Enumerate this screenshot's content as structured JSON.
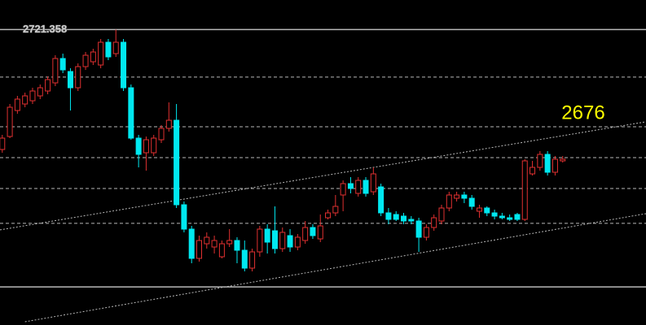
{
  "chart_data": {
    "type": "candlestick",
    "xlim": [
      -0.3,
      85
    ],
    "ylim": [
      2585,
      2735
    ],
    "yticks": [
      2721.358
    ],
    "grid_levels": [
      2699.4,
      2676.5,
      2662.25,
      2648,
      2631.9
    ],
    "solid_levels": [
      2602.6
    ],
    "up_color": "#e03030",
    "down_color": "#00e8f0",
    "grid_color": "#b8b8b8",
    "annotation": "2676",
    "annotation_color": "#ffff00",
    "trendlines": [
      {
        "x": [
          -0.3,
          85
        ],
        "y": [
          2628.9,
          2678.8
        ]
      },
      {
        "x": [
          3,
          85
        ],
        "y": [
          2586.5,
          2636.4
        ]
      }
    ],
    "open": [
      2666,
      2672,
      2684,
      2687,
      2688.5,
      2690.75,
      2693,
      2696.75,
      2708,
      2702,
      2694.5,
      2704.25,
      2706.5,
      2705,
      2715.5,
      2710.25,
      2715.5,
      2694.5,
      2671.25,
      2664.5,
      2664.5,
      2670.5,
      2675.75,
      2679.5,
      2640.5,
      2629.25,
      2615.75,
      2622.5,
      2621,
      2616.5,
      2622.5,
      2624,
      2619.5,
      2611.25,
      2618.75,
      2629.25,
      2628.5,
      2620.25,
      2626.25,
      2621,
      2624,
      2630,
      2624.75,
      2634.5,
      2636.75,
      2645,
      2650.25,
      2645.75,
      2651.75,
      2646.5,
      2648.75,
      2636.75,
      2636,
      2635.25,
      2633.75,
      2633,
      2625.5,
      2630,
      2633,
      2639,
      2643.5,
      2645,
      2643.5,
      2637.5,
      2639,
      2636.75,
      2635.25,
      2634.5,
      2636,
      2633.75,
      2654.75,
      2657.75,
      2663.75,
      2655.5,
      2660.75
    ],
    "high": [
      2672.75,
      2687,
      2690.75,
      2692.25,
      2694.5,
      2696,
      2699.75,
      2709.5,
      2710.25,
      2703.5,
      2705.75,
      2711,
      2712.5,
      2717,
      2717,
      2721.358,
      2717,
      2696,
      2672.75,
      2672,
      2672.75,
      2677.25,
      2687.75,
      2687,
      2642,
      2630.75,
      2626.25,
      2627.75,
      2626.25,
      2624,
      2629.25,
      2625.5,
      2624,
      2620.25,
      2630.75,
      2631.5,
      2639.75,
      2630,
      2629.25,
      2627,
      2633,
      2631.5,
      2636,
      2638.25,
      2645,
      2651.75,
      2653.25,
      2653.25,
      2653.25,
      2657.75,
      2650.25,
      2639,
      2637.5,
      2636.75,
      2635.25,
      2634.5,
      2631.5,
      2636,
      2640.5,
      2646.5,
      2646.5,
      2646.5,
      2645,
      2640.5,
      2639.75,
      2638.25,
      2636.75,
      2636,
      2636.75,
      2661.5,
      2660.75,
      2665.25,
      2665.25,
      2663,
      2663
    ],
    "low": [
      2664.5,
      2671.25,
      2682.5,
      2685.5,
      2687,
      2689.25,
      2691.5,
      2695.25,
      2701.25,
      2684,
      2693,
      2702.75,
      2705,
      2703.5,
      2707.25,
      2708.75,
      2693,
      2670.5,
      2657.75,
      2656.25,
      2663,
      2669,
      2674.25,
      2639,
      2627.75,
      2613.5,
      2614.25,
      2620.25,
      2618,
      2615.75,
      2621,
      2613.5,
      2609.75,
      2609.75,
      2616.5,
      2618,
      2618,
      2618.75,
      2618.75,
      2619.5,
      2622.5,
      2624.75,
      2623.25,
      2633.75,
      2635.25,
      2637.5,
      2645.75,
      2644.25,
      2644.25,
      2645,
      2635.25,
      2631.5,
      2633,
      2631.5,
      2631.5,
      2618.75,
      2624,
      2628.5,
      2631.5,
      2637.5,
      2642,
      2641.25,
      2638.25,
      2634.5,
      2635.25,
      2633.75,
      2633.75,
      2633,
      2633,
      2633,
      2654,
      2656.25,
      2654,
      2654,
      2660
    ],
    "close": [
      2671.25,
      2685.5,
      2689.25,
      2690.75,
      2693,
      2694.5,
      2698.25,
      2708,
      2702.75,
      2694.5,
      2704.25,
      2709.5,
      2711,
      2715.5,
      2708.75,
      2715.5,
      2694.5,
      2671.25,
      2663.75,
      2670.5,
      2671.25,
      2675.75,
      2679.5,
      2640.5,
      2629.25,
      2615.75,
      2624,
      2625.5,
      2624,
      2622.5,
      2624,
      2619.5,
      2611.25,
      2618.75,
      2629.25,
      2623.25,
      2620.25,
      2627.75,
      2621,
      2625.5,
      2630,
      2626.25,
      2630.75,
      2636.75,
      2639.75,
      2650.25,
      2648,
      2651.75,
      2645.75,
      2654.75,
      2636.75,
      2633.75,
      2633.75,
      2633,
      2633,
      2625.5,
      2630,
      2634.5,
      2639,
      2645,
      2645,
      2643.5,
      2639.75,
      2639,
      2636.75,
      2635.25,
      2634.5,
      2633.75,
      2633.75,
      2660.75,
      2657.75,
      2663.75,
      2655.5,
      2661.5,
      2661.5
    ]
  }
}
